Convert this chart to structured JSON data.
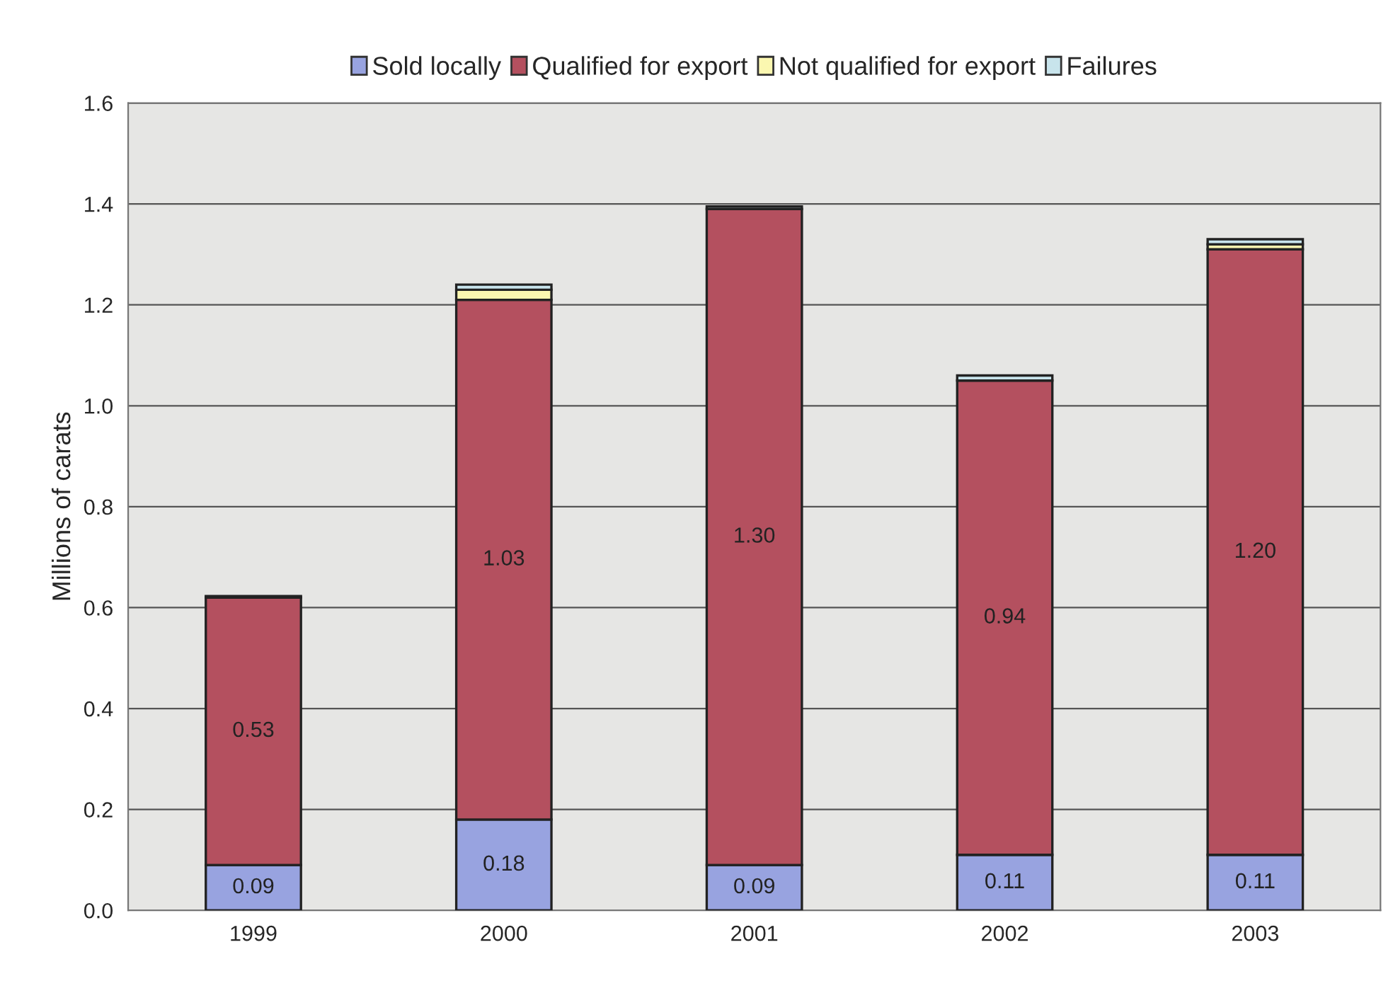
{
  "chart_data": {
    "type": "bar",
    "stacked": true,
    "ylabel": "Millions of carats",
    "categories": [
      "1999",
      "2000",
      "2001",
      "2002",
      "2003"
    ],
    "series": [
      {
        "name": "Sold locally",
        "color": "#98a3e0",
        "values": [
          0.09,
          0.18,
          0.09,
          0.11,
          0.11
        ],
        "value_labels": [
          "0.09",
          "0.18",
          "0.09",
          "0.11",
          "0.11"
        ]
      },
      {
        "name": "Qualified for export",
        "color": "#b4505f",
        "values": [
          0.53,
          1.03,
          1.3,
          0.94,
          1.2
        ],
        "value_labels": [
          "0.53",
          "1.03",
          "1.30",
          "0.94",
          "1.20"
        ]
      },
      {
        "name": "Not qualified for export",
        "color": "#fbf7b0",
        "values": [
          null,
          0.02,
          null,
          null,
          0.01
        ]
      },
      {
        "name": "Failures",
        "color": "#c8e4ec",
        "values": [
          0.003,
          0.01,
          0.005,
          0.01,
          0.01
        ]
      }
    ],
    "ylim": [
      0,
      1.6
    ],
    "yticks": [
      "0.0",
      0.2,
      0.4,
      0.6,
      0.8,
      "1.0",
      1.2,
      1.4,
      1.6
    ],
    "grid": "y",
    "legend": "top"
  }
}
